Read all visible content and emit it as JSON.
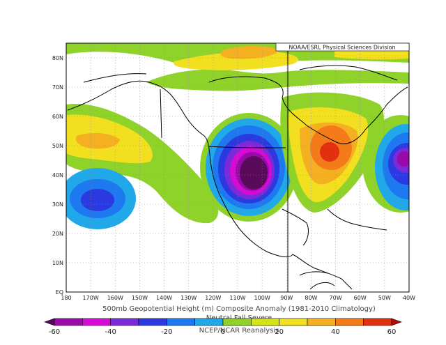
{
  "credit": "NOAA/ESRL Physical Sciences Division",
  "caption": {
    "title": "500mb Geopotential Height (m) Composite Anomaly (1981-2010 Climatology)",
    "subtitle": "Neutral Fall Severe",
    "source": "NCEP/NCAR Reanalysis"
  },
  "lat_labels": [
    "80N",
    "70N",
    "60N",
    "50N",
    "40N",
    "30N",
    "20N",
    "10N",
    "EQ"
  ],
  "lon_labels": [
    "180",
    "170W",
    "160W",
    "150W",
    "140W",
    "130W",
    "120W",
    "110W",
    "100W",
    "90W",
    "80W",
    "70W",
    "60W",
    "50W",
    "40W"
  ],
  "colorbar": {
    "labels": [
      "-60",
      "-40",
      "-20",
      "0",
      "20",
      "40",
      "60"
    ],
    "colors": [
      "#5a0a5a",
      "#9a0aa8",
      "#d60ad6",
      "#7a2ad8",
      "#2a3ae0",
      "#1e78f0",
      "#20a8e8",
      "#8ed22a",
      "#d4e41a",
      "#f2e020",
      "#f4b020",
      "#f47a1a",
      "#e03010",
      "#b80808"
    ]
  },
  "anomaly_centers": [
    {
      "id": "trough-western-us",
      "lat": 40,
      "lon": -105,
      "sign": "negative",
      "peak_m": -60
    },
    {
      "id": "ridge-great-lakes",
      "lat": 48,
      "lon": -77,
      "sign": "positive",
      "peak_m": 60
    },
    {
      "id": "trough-north-pacific",
      "lat": 32,
      "lon": -168,
      "sign": "negative",
      "peak_m": -25
    },
    {
      "id": "trough-western-atlantic",
      "lat": 46,
      "lon": -45,
      "sign": "negative",
      "peak_m": -50
    },
    {
      "id": "ridge-gulf-of-alaska",
      "lat": 50,
      "lon": -168,
      "sign": "positive",
      "peak_m": 35
    },
    {
      "id": "ridge-arctic",
      "lat": 82,
      "lon": -120,
      "sign": "positive",
      "peak_m": 35
    }
  ]
}
